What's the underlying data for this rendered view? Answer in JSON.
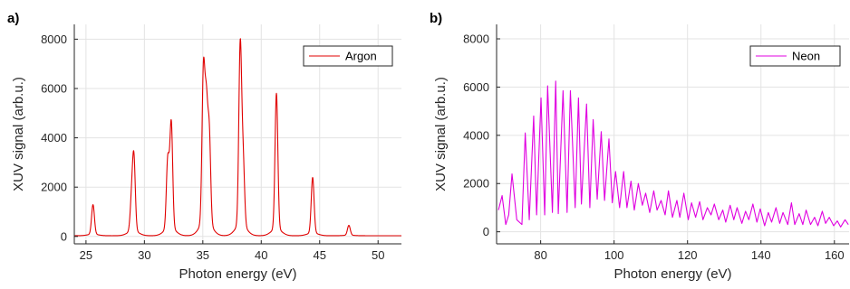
{
  "colors": {
    "argon": "#e00000",
    "neon": "#e000e0",
    "grid": "#e3e3e3",
    "axis": "#262626"
  },
  "chart_data": [
    {
      "panel_label": "a)",
      "type": "line",
      "xlabel": "Photon energy (eV)",
      "ylabel": "XUV signal (arb.u.)",
      "xlim": [
        24,
        52
      ],
      "ylim": [
        -300,
        8600
      ],
      "xticks": [
        25,
        30,
        35,
        40,
        45,
        50
      ],
      "yticks": [
        0,
        2000,
        4000,
        6000,
        8000
      ],
      "grid": true,
      "legend": "top-right",
      "series": [
        {
          "name": "Argon",
          "peaks": [
            {
              "x": 25.6,
              "y": 1200
            },
            {
              "x": 28.9,
              "y": 1200
            },
            {
              "x": 29.1,
              "y": 2900
            },
            {
              "x": 32.0,
              "y": 2800
            },
            {
              "x": 32.3,
              "y": 4250
            },
            {
              "x": 35.05,
              "y": 6000
            },
            {
              "x": 35.3,
              "y": 4450
            },
            {
              "x": 35.55,
              "y": 3600
            },
            {
              "x": 38.2,
              "y": 7200
            },
            {
              "x": 38.45,
              "y": 2600
            },
            {
              "x": 41.3,
              "y": 5500
            },
            {
              "x": 44.4,
              "y": 2250
            },
            {
              "x": 47.5,
              "y": 400
            }
          ]
        }
      ]
    },
    {
      "panel_label": "b)",
      "type": "line",
      "xlabel": "Photon energy (eV)",
      "ylabel": "XUV signal (arb.u.)",
      "xlim": [
        68,
        164
      ],
      "ylim": [
        -500,
        8600
      ],
      "xticks": [
        80,
        100,
        120,
        140,
        160
      ],
      "yticks": [
        0,
        2000,
        4000,
        6000,
        8000
      ],
      "grid": true,
      "legend": "top-right",
      "series": [
        {
          "name": "Neon",
          "x": [
            68.5,
            69.5,
            70.5,
            71.3,
            72.2,
            73.5,
            74.9,
            75.8,
            76.9,
            78.1,
            78.9,
            80.1,
            81.1,
            81.9,
            83.2,
            84.1,
            84.8,
            86.1,
            87.2,
            88.1,
            89.4,
            90.3,
            91.1,
            92.5,
            93.4,
            94.3,
            95.4,
            96.5,
            97.4,
            98.6,
            99.5,
            100.4,
            101.5,
            102.6,
            103.5,
            104.6,
            105.5,
            106.6,
            107.7,
            108.6,
            109.7,
            110.8,
            111.7,
            112.8,
            113.9,
            114.8,
            115.9,
            117.1,
            117.9,
            119.0,
            120.2,
            121.1,
            122.2,
            123.3,
            124.2,
            125.4,
            126.4,
            127.3,
            128.5,
            129.6,
            130.4,
            131.6,
            132.6,
            133.5,
            134.8,
            135.8,
            136.7,
            137.8,
            138.9,
            139.8,
            141.0,
            142.0,
            142.9,
            144.1,
            145.1,
            146.0,
            147.3,
            148.3,
            149.2,
            150.4,
            151.4,
            152.3,
            153.5,
            154.6,
            155.5,
            156.7,
            157.6,
            158.6,
            159.8,
            160.8,
            161.7,
            162.9,
            163.8
          ],
          "y": [
            900,
            1500,
            300,
            700,
            2400,
            500,
            300,
            4100,
            500,
            4800,
            700,
            5550,
            700,
            6050,
            800,
            6250,
            750,
            5850,
            800,
            5850,
            1000,
            5550,
            1150,
            5300,
            1000,
            4650,
            1350,
            4150,
            1300,
            3850,
            1200,
            2500,
            1000,
            2500,
            1000,
            2100,
            900,
            2000,
            1100,
            1600,
            800,
            1700,
            900,
            1300,
            700,
            1700,
            600,
            1300,
            600,
            1600,
            500,
            1200,
            600,
            1250,
            500,
            1000,
            700,
            1150,
            500,
            900,
            400,
            1100,
            500,
            1000,
            350,
            850,
            500,
            1150,
            400,
            950,
            250,
            800,
            400,
            1000,
            350,
            800,
            300,
            1200,
            300,
            750,
            300,
            900,
            300,
            600,
            250,
            850,
            350,
            600,
            250,
            450,
            200,
            500,
            300
          ]
        }
      ]
    }
  ]
}
